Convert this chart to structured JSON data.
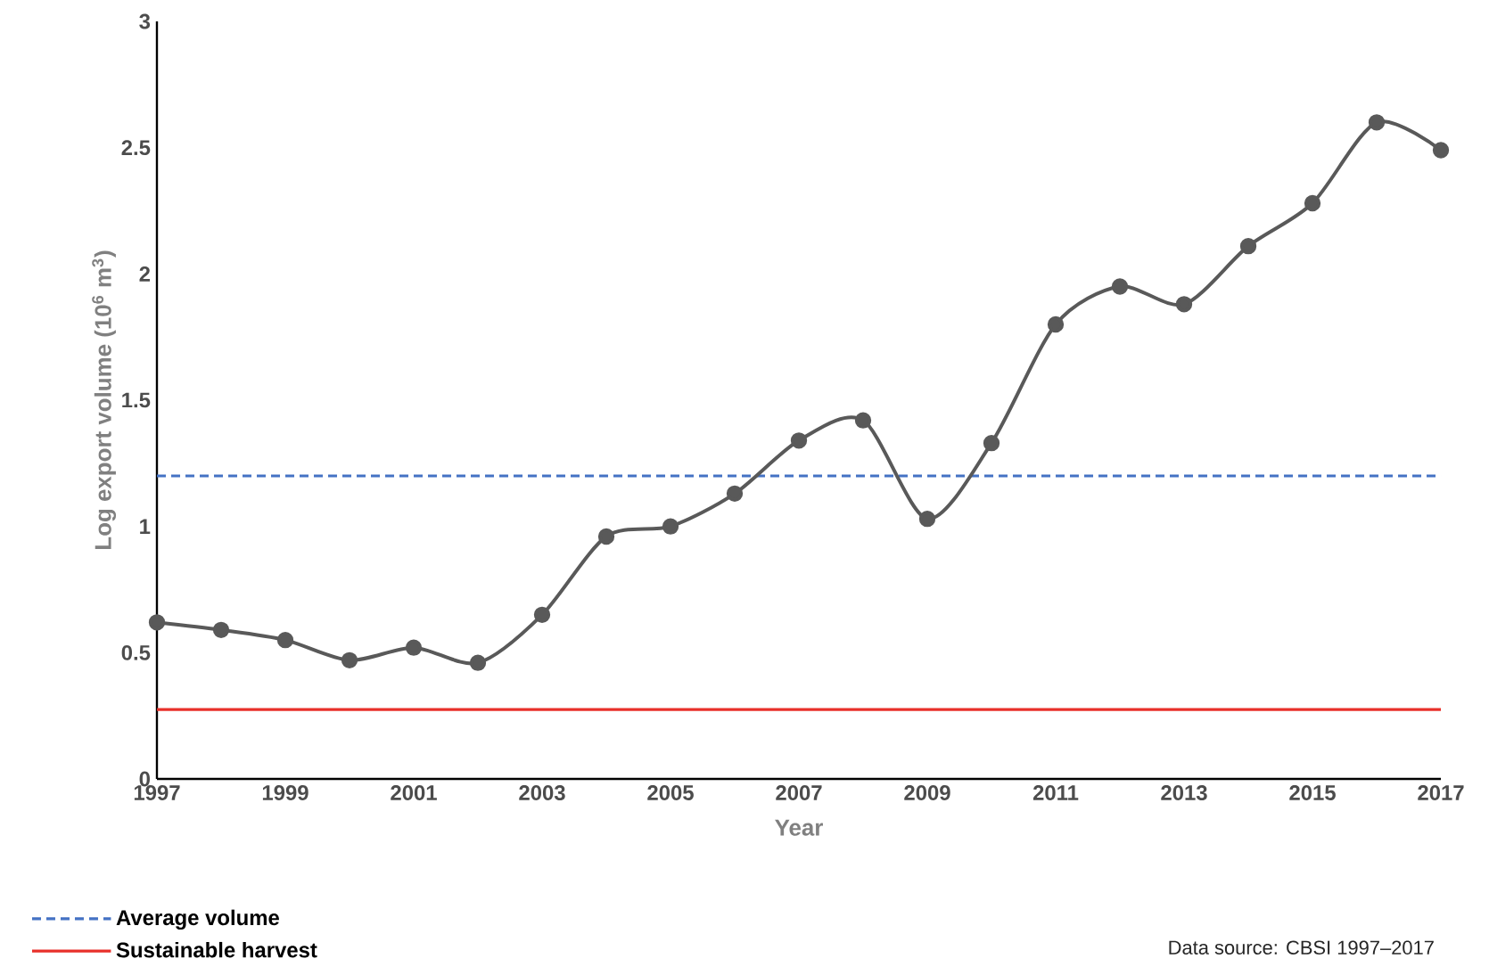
{
  "chart_data": {
    "type": "line",
    "xlabel": "Year",
    "ylabel": "Log export volume (10$^{6}$ m$^{3}$)",
    "x": [
      1997,
      1998,
      1999,
      2000,
      2001,
      2002,
      2003,
      2004,
      2005,
      2006,
      2007,
      2008,
      2009,
      2010,
      2011,
      2012,
      2013,
      2014,
      2015,
      2016,
      2017
    ],
    "series": [
      {
        "color": "#595959",
        "values": [
          0.62,
          0.59,
          0.55,
          0.47,
          0.52,
          0.46,
          0.65,
          0.96,
          1.0,
          1.13,
          1.34,
          1.42,
          1.03,
          1.33,
          1.8,
          1.95,
          1.88,
          2.11,
          2.28,
          2.6,
          2.49
        ]
      }
    ],
    "xlim": [
      1997,
      2017
    ],
    "xticks": [
      1997,
      1999,
      2001,
      2003,
      2005,
      2007,
      2009,
      2011,
      2013,
      2015,
      2017
    ],
    "ylim": [
      0,
      3
    ],
    "yticks": [
      0,
      0.5,
      1,
      1.5,
      2,
      2.5,
      3
    ],
    "ref_lines": [
      {
        "axis": "y",
        "value": 1.2,
        "label": "Average volume",
        "color": "#4472c4",
        "line_style": "dashed"
      },
      {
        "axis": "y",
        "value": 0.275,
        "label": "Sustainable harvest",
        "color": "#e8302a",
        "line_style": "solid"
      }
    ],
    "marker": "circle",
    "grid": false,
    "legend": "bottom left",
    "annotations": [
      "Data source:  CBSI 1997–2017"
    ]
  }
}
